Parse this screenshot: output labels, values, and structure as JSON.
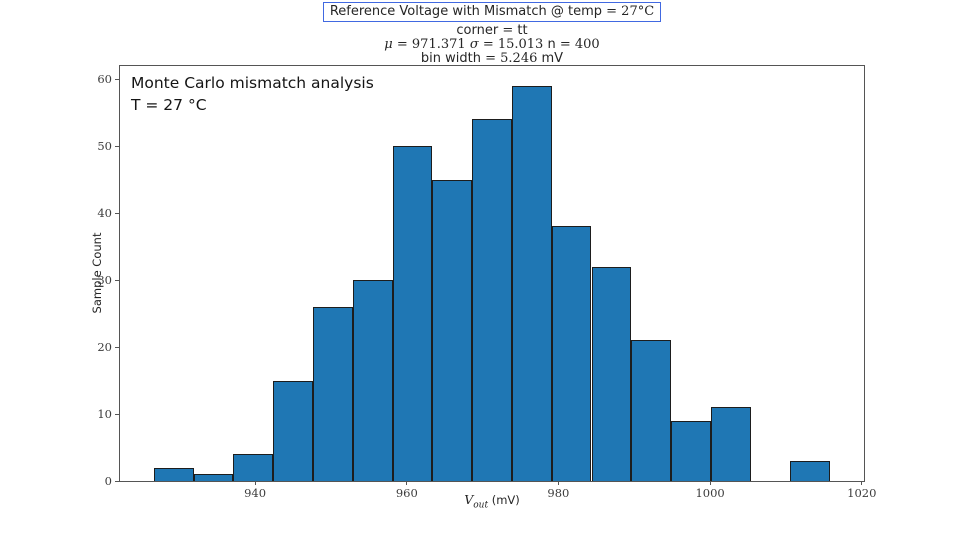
{
  "chart_data": {
    "type": "bar",
    "variant": "histogram",
    "title": "Reference Voltage with Mismatch @ temp = 27°C",
    "subtitle_lines": [
      "corner = tt",
      "μ = 971.371 σ = 15.013 n = 400",
      "bin width = 5.246 mV"
    ],
    "title_segments": [
      {
        "text": "Reference Voltage with Mismatch @ temp ",
        "font": "sans"
      },
      {
        "text": "= 27°C",
        "font": "serif"
      }
    ],
    "subtitle_segments": [
      [
        {
          "text": "corner ",
          "font": "sans"
        },
        {
          "text": "= ",
          "font": "serif"
        },
        {
          "text": "tt",
          "font": "sans"
        }
      ],
      [
        {
          "text": "μ",
          "font": "serif-italic"
        },
        {
          "text": " = 971.371 ",
          "font": "serif"
        },
        {
          "text": "σ",
          "font": "serif-italic"
        },
        {
          "text": " = 15.013 ",
          "font": "serif"
        },
        {
          "text": "n",
          "font": "sans"
        },
        {
          "text": " = 400",
          "font": "serif"
        }
      ],
      [
        {
          "text": "bin width ",
          "font": "sans"
        },
        {
          "text": "= 5.246 ",
          "font": "serif"
        },
        {
          "text": "mV",
          "font": "sans"
        }
      ]
    ],
    "stats": {
      "mu": 971.371,
      "sigma": 15.013,
      "n": 400,
      "bin_width_mV": 5.246,
      "corner": "tt",
      "temp_C": 27
    },
    "bins": {
      "start": 926.65,
      "width": 5.246
    },
    "counts": [
      2,
      1,
      4,
      15,
      26,
      30,
      50,
      45,
      54,
      59,
      38,
      32,
      21,
      9,
      11,
      0,
      3
    ],
    "xlabel": {
      "variable": "V",
      "subscript": "out",
      "unit": " (mV)"
    },
    "ylabel": "Sample Count",
    "annotation": [
      "Monte Carlo mismatch analysis",
      "T = 27 °C"
    ],
    "xticks": [
      940,
      960,
      980,
      1000,
      1020
    ],
    "yticks": [
      0,
      10,
      20,
      30,
      40,
      50,
      60
    ],
    "xlim": [
      922.19,
      1020.29
    ],
    "ylim": [
      0,
      61.95
    ],
    "grid": false,
    "legend_position": "none",
    "colors": {
      "bar_fill": "#1f77b4",
      "bar_edge": "#1d1d1d",
      "spine": "#555555",
      "tick_label": "#3d3d3d",
      "text": "#262626",
      "title_box_border": "#4169e1",
      "background": "#ffffff"
    }
  }
}
